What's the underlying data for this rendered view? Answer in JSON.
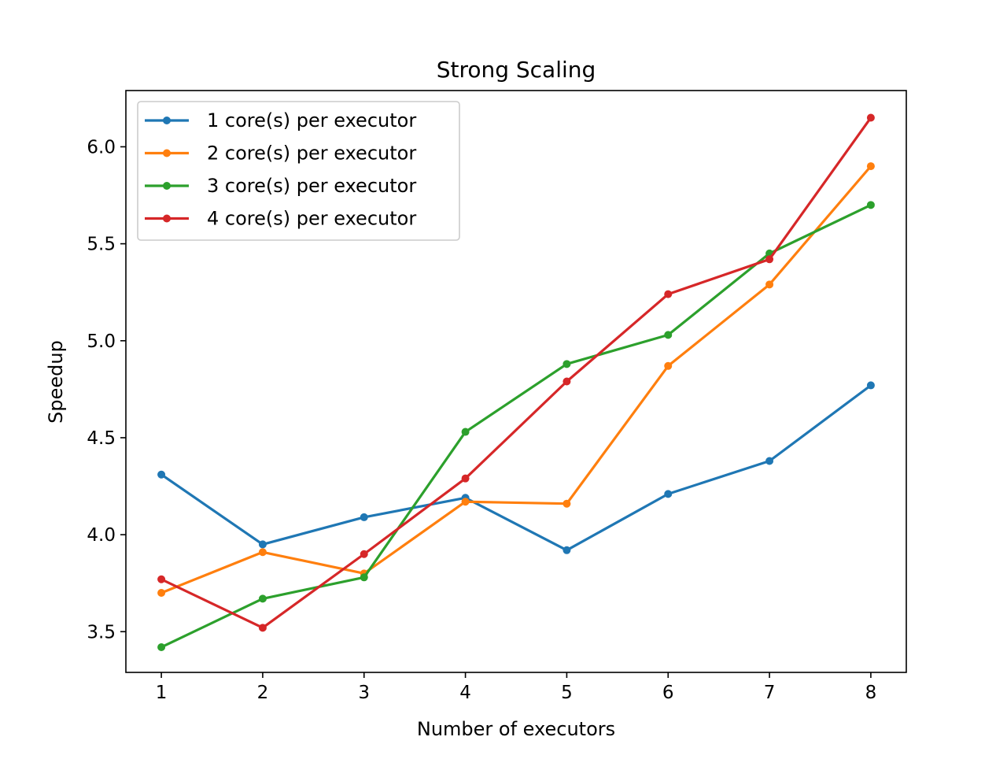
{
  "chart_data": {
    "type": "line",
    "title": "Strong Scaling",
    "xlabel": "Number of executors",
    "ylabel": "Speedup",
    "x": [
      1,
      2,
      3,
      4,
      5,
      6,
      7,
      8
    ],
    "xticks": [
      "1",
      "2",
      "3",
      "4",
      "5",
      "6",
      "7",
      "8"
    ],
    "yticks": [
      "3.5",
      "4.0",
      "4.5",
      "5.0",
      "5.5",
      "6.0"
    ],
    "ytick_values": [
      3.5,
      4.0,
      4.5,
      5.0,
      5.5,
      6.0
    ],
    "xlim": [
      0.65,
      8.35
    ],
    "ylim": [
      3.29,
      6.29
    ],
    "grid": false,
    "legend_position": "top-left",
    "series": [
      {
        "name": "1 core(s) per executor",
        "color": "#1f77b4",
        "values": [
          4.31,
          3.95,
          4.09,
          4.19,
          3.92,
          4.21,
          4.38,
          4.77
        ]
      },
      {
        "name": "2 core(s) per executor",
        "color": "#ff7f0e",
        "values": [
          3.7,
          3.91,
          3.8,
          4.17,
          4.16,
          4.87,
          5.29,
          5.9
        ]
      },
      {
        "name": "3 core(s) per executor",
        "color": "#2ca02c",
        "values": [
          3.42,
          3.67,
          3.78,
          4.53,
          4.88,
          5.03,
          5.45,
          5.7
        ]
      },
      {
        "name": "4 core(s) per executor",
        "color": "#d62728",
        "values": [
          3.77,
          3.52,
          3.9,
          4.29,
          4.79,
          5.24,
          5.42,
          6.15
        ]
      }
    ]
  }
}
